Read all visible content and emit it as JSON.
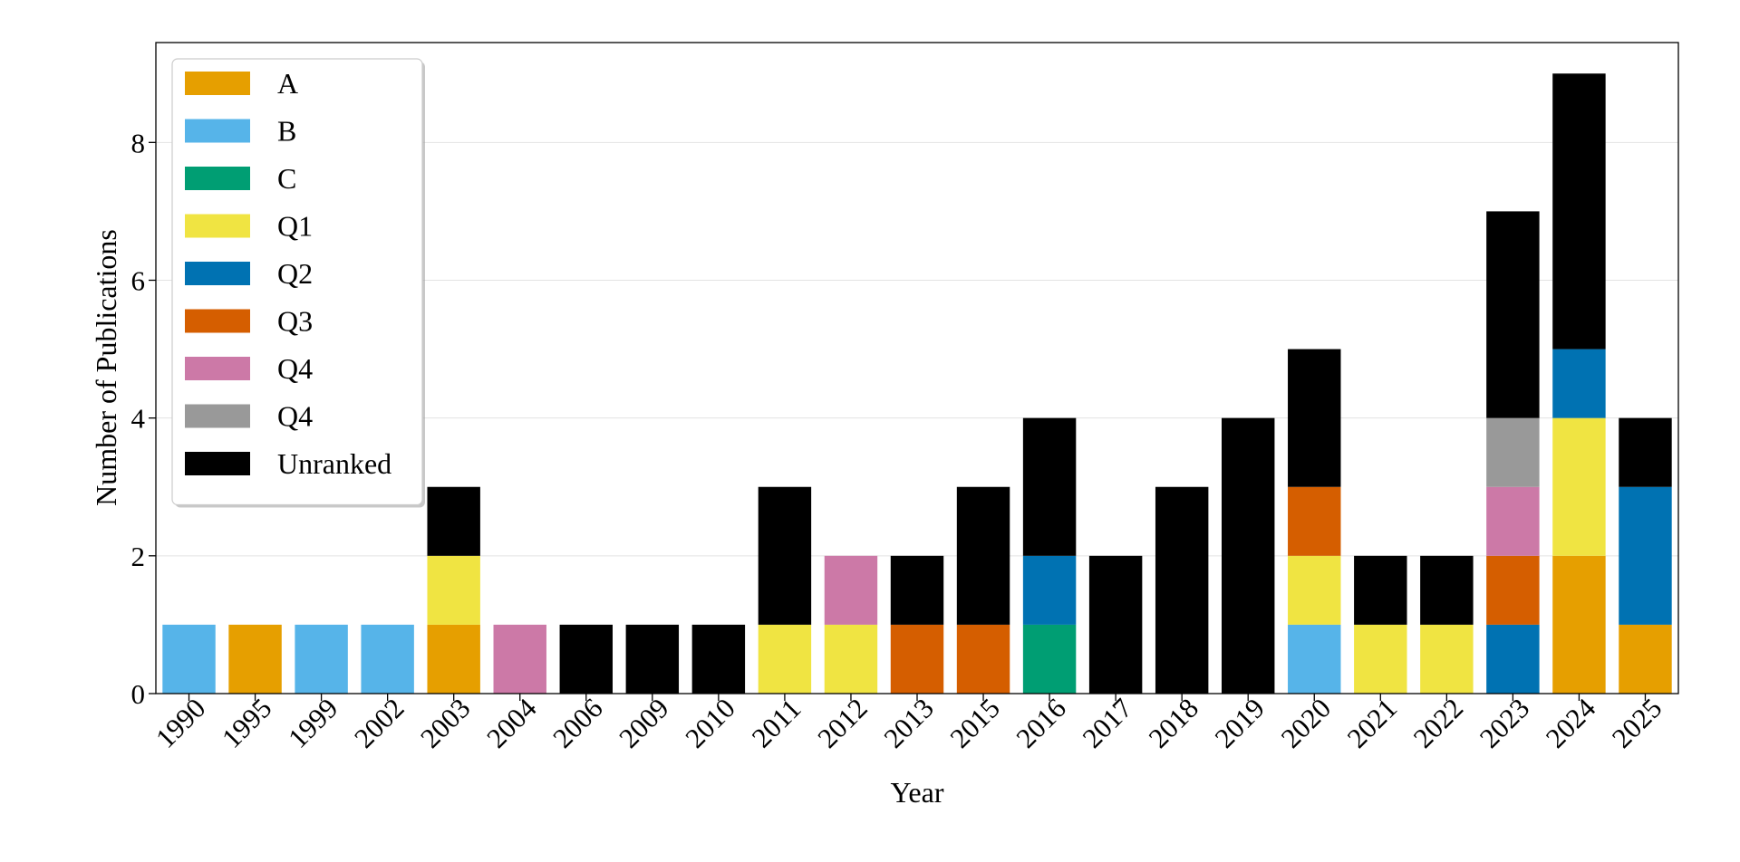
{
  "chart_data": {
    "type": "bar",
    "stacked": true,
    "title": "",
    "xlabel": "Year",
    "ylabel": "Number of Publications",
    "ylim": [
      0,
      9.45
    ],
    "yticks": [
      0,
      2,
      4,
      6,
      8
    ],
    "grid": "y",
    "legend_position": "top-left",
    "categories": [
      "1990",
      "1995",
      "1999",
      "2002",
      "2003",
      "2004",
      "2006",
      "2009",
      "2010",
      "2011",
      "2012",
      "2013",
      "2015",
      "2016",
      "2017",
      "2018",
      "2019",
      "2020",
      "2021",
      "2022",
      "2023",
      "2024",
      "2025"
    ],
    "series": [
      {
        "name": "A",
        "color": "#E69F00",
        "values": [
          0,
          1,
          0,
          0,
          1,
          0,
          0,
          0,
          0,
          0,
          0,
          0,
          0,
          0,
          0,
          0,
          0,
          0,
          0,
          0,
          0,
          2,
          1
        ]
      },
      {
        "name": "B",
        "color": "#56B4E9",
        "values": [
          1,
          0,
          1,
          1,
          0,
          0,
          0,
          0,
          0,
          0,
          0,
          0,
          0,
          0,
          0,
          0,
          0,
          1,
          0,
          0,
          0,
          0,
          0
        ]
      },
      {
        "name": "C",
        "color": "#009E73",
        "values": [
          0,
          0,
          0,
          0,
          0,
          0,
          0,
          0,
          0,
          0,
          0,
          0,
          0,
          1,
          0,
          0,
          0,
          0,
          0,
          0,
          0,
          0,
          0
        ]
      },
      {
        "name": "Q1",
        "color": "#F0E442",
        "values": [
          0,
          0,
          0,
          0,
          1,
          0,
          0,
          0,
          0,
          1,
          1,
          0,
          0,
          0,
          0,
          0,
          0,
          1,
          1,
          1,
          0,
          2,
          0
        ]
      },
      {
        "name": "Q2",
        "color": "#0072B2",
        "values": [
          0,
          0,
          0,
          0,
          0,
          0,
          0,
          0,
          0,
          0,
          0,
          0,
          0,
          1,
          0,
          0,
          0,
          0,
          0,
          0,
          1,
          1,
          2
        ]
      },
      {
        "name": "Q3",
        "color": "#D55E00",
        "values": [
          0,
          0,
          0,
          0,
          0,
          0,
          0,
          0,
          0,
          0,
          0,
          1,
          1,
          0,
          0,
          0,
          0,
          1,
          0,
          0,
          1,
          0,
          0
        ]
      },
      {
        "name": "Q4",
        "color": "#CC79A7",
        "values": [
          0,
          0,
          0,
          0,
          0,
          1,
          0,
          0,
          0,
          0,
          1,
          0,
          0,
          0,
          0,
          0,
          0,
          0,
          0,
          0,
          1,
          0,
          0
        ]
      },
      {
        "name": "Q4",
        "color": "#999999",
        "values": [
          0,
          0,
          0,
          0,
          0,
          0,
          0,
          0,
          0,
          0,
          0,
          0,
          0,
          0,
          0,
          0,
          0,
          0,
          0,
          0,
          1,
          0,
          0
        ]
      },
      {
        "name": "Unranked",
        "color": "#000000",
        "values": [
          0,
          0,
          0,
          0,
          1,
          0,
          1,
          1,
          1,
          2,
          0,
          1,
          2,
          2,
          2,
          3,
          4,
          2,
          1,
          1,
          3,
          4,
          1
        ]
      }
    ]
  }
}
